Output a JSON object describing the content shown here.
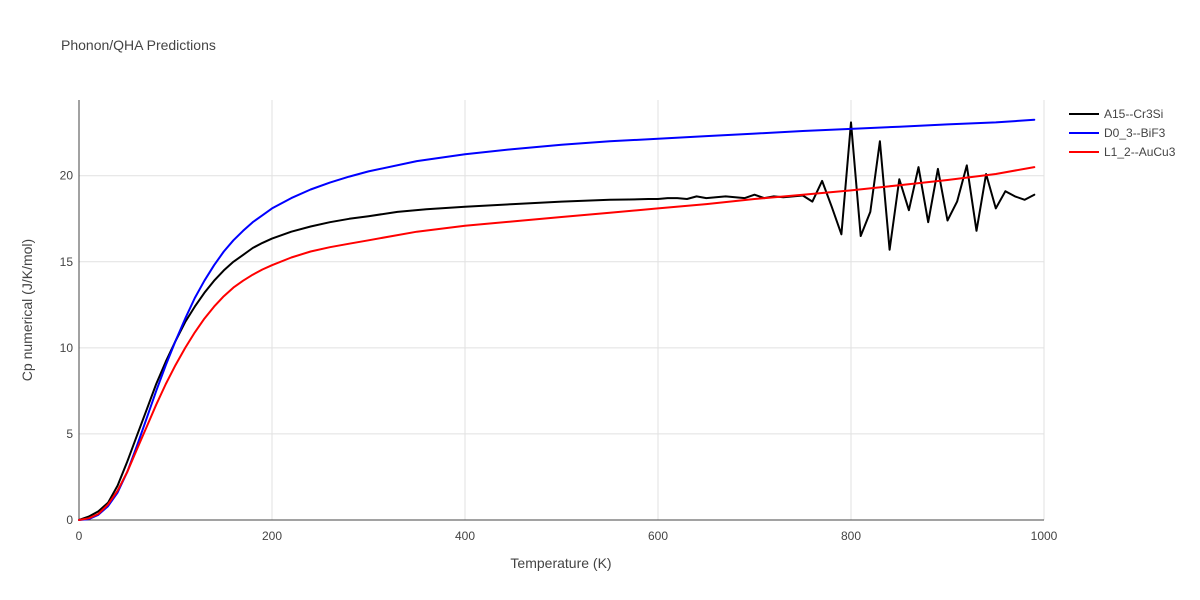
{
  "chart_data": {
    "type": "line",
    "title": "Phonon/QHA Predictions",
    "xlabel": "Temperature (K)",
    "ylabel": "Cp numerical (J/K/mol)",
    "xlim": [
      0,
      1000
    ],
    "ylim": [
      0,
      24.4
    ],
    "xticks": [
      0,
      200,
      400,
      600,
      800,
      1000
    ],
    "yticks": [
      0,
      5,
      10,
      15,
      20
    ],
    "grid": true,
    "legend_position": "top-right",
    "series": [
      {
        "name": "A15--Cr3Si",
        "color": "#000000",
        "x": [
          0,
          10,
          20,
          30,
          40,
          50,
          60,
          70,
          80,
          90,
          100,
          110,
          120,
          130,
          140,
          150,
          160,
          170,
          180,
          190,
          200,
          220,
          240,
          260,
          280,
          300,
          330,
          360,
          400,
          450,
          500,
          550,
          570,
          590,
          600,
          610,
          620,
          630,
          640,
          650,
          660,
          670,
          680,
          690,
          700,
          710,
          720,
          730,
          740,
          750,
          760,
          770,
          780,
          790,
          800,
          810,
          820,
          830,
          840,
          850,
          860,
          870,
          880,
          890,
          900,
          910,
          920,
          930,
          940,
          950,
          960,
          970,
          980,
          990
        ],
        "y": [
          0,
          0.2,
          0.5,
          1.0,
          2.0,
          3.4,
          4.9,
          6.4,
          7.9,
          9.2,
          10.4,
          11.5,
          12.4,
          13.2,
          13.9,
          14.5,
          15.0,
          15.4,
          15.8,
          16.1,
          16.35,
          16.75,
          17.05,
          17.3,
          17.5,
          17.65,
          17.9,
          18.05,
          18.2,
          18.35,
          18.5,
          18.6,
          18.62,
          18.65,
          18.65,
          18.7,
          18.7,
          18.65,
          18.8,
          18.7,
          18.75,
          18.8,
          18.75,
          18.7,
          18.9,
          18.7,
          18.8,
          18.75,
          18.8,
          18.85,
          18.5,
          19.7,
          18.2,
          16.6,
          23.1,
          16.5,
          17.9,
          22.0,
          15.7,
          19.8,
          18.0,
          20.5,
          17.3,
          20.4,
          17.4,
          18.5,
          20.6,
          16.8,
          20.1,
          18.1,
          19.1,
          18.8,
          18.6,
          18.9
        ]
      },
      {
        "name": "D0_3--BiF3",
        "color": "#0000ff",
        "x": [
          0,
          10,
          20,
          30,
          40,
          50,
          60,
          70,
          80,
          90,
          100,
          110,
          120,
          130,
          140,
          150,
          160,
          170,
          180,
          190,
          200,
          220,
          240,
          260,
          280,
          300,
          350,
          400,
          450,
          500,
          550,
          600,
          650,
          700,
          750,
          800,
          850,
          900,
          950,
          990
        ],
        "y": [
          0,
          0.05,
          0.3,
          0.8,
          1.6,
          2.8,
          4.3,
          5.9,
          7.5,
          9.0,
          10.4,
          11.7,
          12.9,
          13.9,
          14.8,
          15.6,
          16.25,
          16.8,
          17.3,
          17.7,
          18.1,
          18.7,
          19.2,
          19.6,
          19.95,
          20.25,
          20.85,
          21.25,
          21.55,
          21.8,
          22.0,
          22.15,
          22.3,
          22.45,
          22.6,
          22.72,
          22.85,
          22.98,
          23.1,
          23.25
        ]
      },
      {
        "name": "L1_2--AuCu3",
        "color": "#ff0000",
        "x": [
          0,
          10,
          20,
          30,
          40,
          50,
          60,
          70,
          80,
          90,
          100,
          110,
          120,
          130,
          140,
          150,
          160,
          170,
          180,
          190,
          200,
          220,
          240,
          260,
          280,
          300,
          350,
          400,
          450,
          500,
          550,
          600,
          650,
          700,
          750,
          800,
          850,
          900,
          950,
          990
        ],
        "y": [
          0,
          0.1,
          0.35,
          0.9,
          1.7,
          2.8,
          4.1,
          5.4,
          6.7,
          7.9,
          9.0,
          10.0,
          10.9,
          11.7,
          12.4,
          13.0,
          13.5,
          13.9,
          14.25,
          14.55,
          14.8,
          15.25,
          15.6,
          15.85,
          16.05,
          16.25,
          16.75,
          17.1,
          17.35,
          17.6,
          17.85,
          18.1,
          18.35,
          18.65,
          18.9,
          19.15,
          19.45,
          19.75,
          20.1,
          20.5
        ]
      }
    ]
  }
}
